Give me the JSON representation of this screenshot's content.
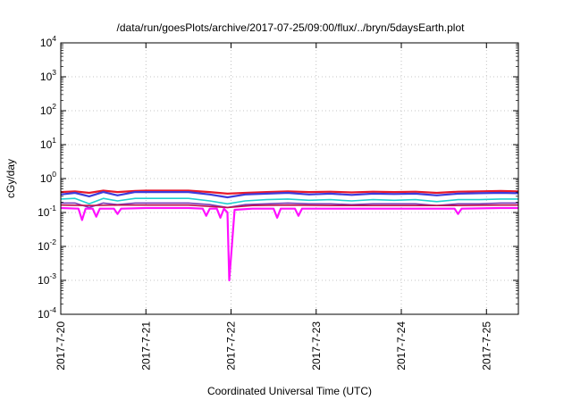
{
  "chart_data": {
    "type": "line",
    "title": "/data/run/goesPlots/archive/2017-07-25/09:00/flux/../bryn/5daysEarth.plot",
    "xlabel": "Coordinated Universal Time (UTC)",
    "ylabel": "cGy/day",
    "yscale": "log",
    "ylim": [
      0.0001,
      10000
    ],
    "xlim": [
      "2017-07-20T00:00",
      "2017-07-25T09:00"
    ],
    "grid": true,
    "y_ticks": [
      {
        "value": 0.0001,
        "base": "10",
        "exp": "-4"
      },
      {
        "value": 0.001,
        "base": "10",
        "exp": "-3"
      },
      {
        "value": 0.01,
        "base": "10",
        "exp": "-2"
      },
      {
        "value": 0.1,
        "base": "10",
        "exp": "-1"
      },
      {
        "value": 1,
        "base": "10",
        "exp": "0"
      },
      {
        "value": 10,
        "base": "10",
        "exp": "1"
      },
      {
        "value": 100,
        "base": "10",
        "exp": "2"
      },
      {
        "value": 1000,
        "base": "10",
        "exp": "3"
      },
      {
        "value": 10000,
        "base": "10",
        "exp": "4"
      }
    ],
    "x_ticks": [
      {
        "value": "2017-07-20T00:00",
        "label": "2017-7-20"
      },
      {
        "value": "2017-07-21T00:00",
        "label": "2017-7-21"
      },
      {
        "value": "2017-07-22T00:00",
        "label": "2017-7-22"
      },
      {
        "value": "2017-07-23T00:00",
        "label": "2017-7-23"
      },
      {
        "value": "2017-07-24T00:00",
        "label": "2017-7-24"
      },
      {
        "value": "2017-07-25T00:00",
        "label": "2017-7-25"
      }
    ],
    "series": [
      {
        "color": "#e8192c",
        "width": 2.2,
        "points": [
          [
            "2017-07-20T00:00",
            0.4
          ],
          [
            "2017-07-20T04:00",
            0.42
          ],
          [
            "2017-07-20T08:00",
            0.38
          ],
          [
            "2017-07-20T12:00",
            0.44
          ],
          [
            "2017-07-20T16:00",
            0.4
          ],
          [
            "2017-07-20T21:00",
            0.43
          ],
          [
            "2017-07-21T00:00",
            0.44
          ],
          [
            "2017-07-21T06:00",
            0.44
          ],
          [
            "2017-07-21T12:00",
            0.44
          ],
          [
            "2017-07-21T18:00",
            0.4
          ],
          [
            "2017-07-21T23:00",
            0.36
          ],
          [
            "2017-07-22T04:00",
            0.38
          ],
          [
            "2017-07-22T10:00",
            0.4
          ],
          [
            "2017-07-22T16:00",
            0.42
          ],
          [
            "2017-07-22T22:00",
            0.4
          ],
          [
            "2017-07-23T04:00",
            0.41
          ],
          [
            "2017-07-23T10:00",
            0.39
          ],
          [
            "2017-07-23T16:00",
            0.41
          ],
          [
            "2017-07-23T22:00",
            0.4
          ],
          [
            "2017-07-24T04:00",
            0.41
          ],
          [
            "2017-07-24T10:00",
            0.38
          ],
          [
            "2017-07-24T16:00",
            0.41
          ],
          [
            "2017-07-24T22:00",
            0.42
          ],
          [
            "2017-07-25T04:00",
            0.43
          ],
          [
            "2017-07-25T09:00",
            0.42
          ]
        ]
      },
      {
        "color": "#3c3cdc",
        "width": 2.2,
        "points": [
          [
            "2017-07-20T00:00",
            0.34
          ],
          [
            "2017-07-20T04:00",
            0.38
          ],
          [
            "2017-07-20T08:00",
            0.3
          ],
          [
            "2017-07-20T12:00",
            0.4
          ],
          [
            "2017-07-20T16:00",
            0.32
          ],
          [
            "2017-07-20T21:00",
            0.4
          ],
          [
            "2017-07-21T00:00",
            0.4
          ],
          [
            "2017-07-21T06:00",
            0.4
          ],
          [
            "2017-07-21T12:00",
            0.4
          ],
          [
            "2017-07-21T18:00",
            0.34
          ],
          [
            "2017-07-21T23:00",
            0.28
          ],
          [
            "2017-07-22T04:00",
            0.34
          ],
          [
            "2017-07-22T10:00",
            0.36
          ],
          [
            "2017-07-22T16:00",
            0.38
          ],
          [
            "2017-07-22T22:00",
            0.34
          ],
          [
            "2017-07-23T04:00",
            0.36
          ],
          [
            "2017-07-23T10:00",
            0.33
          ],
          [
            "2017-07-23T16:00",
            0.36
          ],
          [
            "2017-07-23T22:00",
            0.35
          ],
          [
            "2017-07-24T04:00",
            0.36
          ],
          [
            "2017-07-24T10:00",
            0.32
          ],
          [
            "2017-07-24T16:00",
            0.36
          ],
          [
            "2017-07-24T22:00",
            0.37
          ],
          [
            "2017-07-25T04:00",
            0.38
          ],
          [
            "2017-07-25T09:00",
            0.37
          ]
        ]
      },
      {
        "color": "#20d0d0",
        "width": 1.6,
        "points": [
          [
            "2017-07-20T00:00",
            0.25
          ],
          [
            "2017-07-20T04:00",
            0.26
          ],
          [
            "2017-07-20T08:00",
            0.18
          ],
          [
            "2017-07-20T12:00",
            0.26
          ],
          [
            "2017-07-20T16:00",
            0.22
          ],
          [
            "2017-07-20T21:00",
            0.26
          ],
          [
            "2017-07-21T00:00",
            0.26
          ],
          [
            "2017-07-21T06:00",
            0.26
          ],
          [
            "2017-07-21T12:00",
            0.26
          ],
          [
            "2017-07-21T18:00",
            0.22
          ],
          [
            "2017-07-21T23:00",
            0.18
          ],
          [
            "2017-07-22T04:00",
            0.22
          ],
          [
            "2017-07-22T10:00",
            0.24
          ],
          [
            "2017-07-22T16:00",
            0.25
          ],
          [
            "2017-07-22T22:00",
            0.23
          ],
          [
            "2017-07-23T04:00",
            0.24
          ],
          [
            "2017-07-23T10:00",
            0.22
          ],
          [
            "2017-07-23T16:00",
            0.24
          ],
          [
            "2017-07-23T22:00",
            0.23
          ],
          [
            "2017-07-24T04:00",
            0.24
          ],
          [
            "2017-07-24T10:00",
            0.21
          ],
          [
            "2017-07-24T16:00",
            0.24
          ],
          [
            "2017-07-24T22:00",
            0.24
          ],
          [
            "2017-07-25T04:00",
            0.25
          ],
          [
            "2017-07-25T09:00",
            0.25
          ]
        ]
      },
      {
        "color": "#7a3ab8",
        "width": 1.6,
        "points": [
          [
            "2017-07-20T00:00",
            0.19
          ],
          [
            "2017-07-20T04:00",
            0.19
          ],
          [
            "2017-07-20T08:00",
            0.14
          ],
          [
            "2017-07-20T12:00",
            0.19
          ],
          [
            "2017-07-20T16:00",
            0.17
          ],
          [
            "2017-07-20T21:00",
            0.19
          ],
          [
            "2017-07-21T00:00",
            0.19
          ],
          [
            "2017-07-21T06:00",
            0.19
          ],
          [
            "2017-07-21T12:00",
            0.19
          ],
          [
            "2017-07-21T18:00",
            0.17
          ],
          [
            "2017-07-21T23:00",
            0.14
          ],
          [
            "2017-07-22T04:00",
            0.17
          ],
          [
            "2017-07-22T10:00",
            0.18
          ],
          [
            "2017-07-22T16:00",
            0.19
          ],
          [
            "2017-07-22T22:00",
            0.18
          ],
          [
            "2017-07-23T04:00",
            0.18
          ],
          [
            "2017-07-23T10:00",
            0.17
          ],
          [
            "2017-07-23T16:00",
            0.18
          ],
          [
            "2017-07-23T22:00",
            0.18
          ],
          [
            "2017-07-24T04:00",
            0.18
          ],
          [
            "2017-07-24T10:00",
            0.16
          ],
          [
            "2017-07-24T16:00",
            0.18
          ],
          [
            "2017-07-24T22:00",
            0.18
          ],
          [
            "2017-07-25T04:00",
            0.19
          ],
          [
            "2017-07-25T09:00",
            0.19
          ]
        ]
      },
      {
        "color": "#c0104c",
        "width": 1.6,
        "points": [
          [
            "2017-07-20T00:00",
            0.165
          ],
          [
            "2017-07-20T08:00",
            0.16
          ],
          [
            "2017-07-20T16:00",
            0.165
          ],
          [
            "2017-07-21T00:00",
            0.165
          ],
          [
            "2017-07-21T12:00",
            0.165
          ],
          [
            "2017-07-21T23:00",
            0.14
          ],
          [
            "2017-07-22T06:00",
            0.16
          ],
          [
            "2017-07-22T16:00",
            0.165
          ],
          [
            "2017-07-23T04:00",
            0.16
          ],
          [
            "2017-07-23T16:00",
            0.16
          ],
          [
            "2017-07-24T04:00",
            0.16
          ],
          [
            "2017-07-24T16:00",
            0.16
          ],
          [
            "2017-07-25T04:00",
            0.165
          ],
          [
            "2017-07-25T09:00",
            0.165
          ]
        ]
      },
      {
        "color": "#ff10ff",
        "width": 2.2,
        "points": [
          [
            "2017-07-20T00:00",
            0.135
          ],
          [
            "2017-07-20T05:00",
            0.13
          ],
          [
            "2017-07-20T06:00",
            0.06
          ],
          [
            "2017-07-20T07:00",
            0.13
          ],
          [
            "2017-07-20T09:00",
            0.13
          ],
          [
            "2017-07-20T10:00",
            0.075
          ],
          [
            "2017-07-20T11:00",
            0.13
          ],
          [
            "2017-07-20T15:00",
            0.13
          ],
          [
            "2017-07-20T16:00",
            0.09
          ],
          [
            "2017-07-20T17:00",
            0.13
          ],
          [
            "2017-07-21T00:00",
            0.135
          ],
          [
            "2017-07-21T12:00",
            0.135
          ],
          [
            "2017-07-21T16:00",
            0.13
          ],
          [
            "2017-07-21T17:00",
            0.08
          ],
          [
            "2017-07-21T18:00",
            0.13
          ],
          [
            "2017-07-21T20:00",
            0.13
          ],
          [
            "2017-07-21T21:00",
            0.07
          ],
          [
            "2017-07-21T22:00",
            0.13
          ],
          [
            "2017-07-21T23:00",
            0.1
          ],
          [
            "2017-07-21T23:30",
            0.001
          ],
          [
            "2017-07-22T01:00",
            0.12
          ],
          [
            "2017-07-22T06:00",
            0.13
          ],
          [
            "2017-07-22T12:00",
            0.13
          ],
          [
            "2017-07-22T13:00",
            0.07
          ],
          [
            "2017-07-22T14:00",
            0.13
          ],
          [
            "2017-07-22T18:00",
            0.13
          ],
          [
            "2017-07-22T19:00",
            0.08
          ],
          [
            "2017-07-22T20:00",
            0.13
          ],
          [
            "2017-07-23T04:00",
            0.13
          ],
          [
            "2017-07-23T16:00",
            0.13
          ],
          [
            "2017-07-24T04:00",
            0.13
          ],
          [
            "2017-07-24T15:00",
            0.13
          ],
          [
            "2017-07-24T16:00",
            0.09
          ],
          [
            "2017-07-24T17:00",
            0.13
          ],
          [
            "2017-07-25T04:00",
            0.135
          ],
          [
            "2017-07-25T09:00",
            0.135
          ]
        ]
      }
    ]
  }
}
